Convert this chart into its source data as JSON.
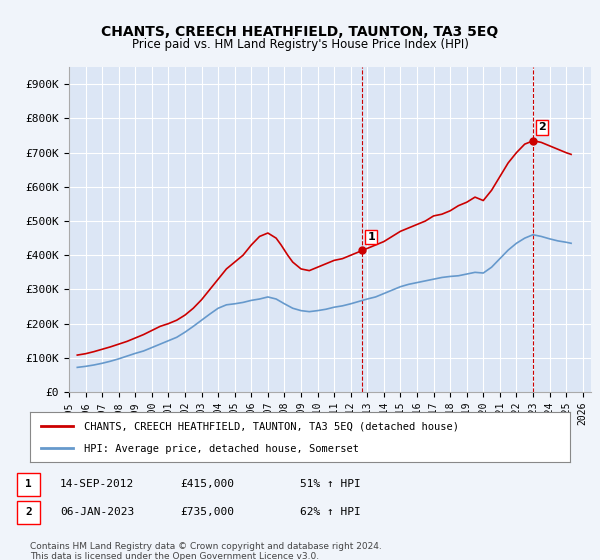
{
  "title": "CHANTS, CREECH HEATHFIELD, TAUNTON, TA3 5EQ",
  "subtitle": "Price paid vs. HM Land Registry's House Price Index (HPI)",
  "background_color": "#f0f4fa",
  "plot_bg_color": "#dce6f5",
  "grid_color": "#ffffff",
  "ylim": [
    0,
    950000
  ],
  "yticks": [
    0,
    100000,
    200000,
    300000,
    400000,
    500000,
    600000,
    700000,
    800000,
    900000
  ],
  "ytick_labels": [
    "£0",
    "£100K",
    "£200K",
    "£300K",
    "£400K",
    "£500K",
    "£600K",
    "£700K",
    "£800K",
    "£900K"
  ],
  "xlim_start": 1995.0,
  "xlim_end": 2026.5,
  "xtick_years": [
    1995,
    1996,
    1997,
    1998,
    1999,
    2000,
    2001,
    2002,
    2003,
    2004,
    2005,
    2006,
    2007,
    2008,
    2009,
    2010,
    2011,
    2012,
    2013,
    2014,
    2015,
    2016,
    2017,
    2018,
    2019,
    2020,
    2021,
    2022,
    2023,
    2024,
    2025,
    2026
  ],
  "red_line_color": "#cc0000",
  "blue_line_color": "#6699cc",
  "marker1_x": 2012.71,
  "marker1_y": 415000,
  "marker2_x": 2023.02,
  "marker2_y": 735000,
  "vline1_x": 2012.71,
  "vline2_x": 2023.02,
  "legend_label_red": "CHANTS, CREECH HEATHFIELD, TAUNTON, TA3 5EQ (detached house)",
  "legend_label_blue": "HPI: Average price, detached house, Somerset",
  "annotation1_label": "1",
  "annotation2_label": "2",
  "note1_box": "1",
  "note1_date": "14-SEP-2012",
  "note1_price": "£415,000",
  "note1_hpi": "51% ↑ HPI",
  "note2_box": "2",
  "note2_date": "06-JAN-2023",
  "note2_price": "£735,000",
  "note2_hpi": "62% ↑ HPI",
  "footer": "Contains HM Land Registry data © Crown copyright and database right 2024.\nThis data is licensed under the Open Government Licence v3.0.",
  "red_x": [
    1995.5,
    1996.0,
    1996.5,
    1997.0,
    1997.5,
    1998.0,
    1998.5,
    1999.0,
    1999.5,
    2000.0,
    2000.5,
    2001.0,
    2001.5,
    2002.0,
    2002.5,
    2003.0,
    2003.5,
    2004.0,
    2004.5,
    2005.0,
    2005.5,
    2006.0,
    2006.5,
    2007.0,
    2007.5,
    2007.8,
    2008.2,
    2008.5,
    2009.0,
    2009.5,
    2010.0,
    2010.5,
    2011.0,
    2011.5,
    2012.0,
    2012.5,
    2012.71,
    2013.0,
    2013.5,
    2014.0,
    2014.5,
    2015.0,
    2015.5,
    2016.0,
    2016.5,
    2017.0,
    2017.5,
    2018.0,
    2018.5,
    2019.0,
    2019.5,
    2020.0,
    2020.5,
    2021.0,
    2021.5,
    2022.0,
    2022.5,
    2023.02,
    2023.5,
    2024.0,
    2024.5,
    2025.0,
    2025.3
  ],
  "red_y": [
    108000,
    112000,
    118000,
    125000,
    132000,
    140000,
    148000,
    158000,
    168000,
    180000,
    192000,
    200000,
    210000,
    225000,
    245000,
    270000,
    300000,
    330000,
    360000,
    380000,
    400000,
    430000,
    455000,
    465000,
    450000,
    430000,
    400000,
    380000,
    360000,
    355000,
    365000,
    375000,
    385000,
    390000,
    400000,
    410000,
    415000,
    420000,
    430000,
    440000,
    455000,
    470000,
    480000,
    490000,
    500000,
    515000,
    520000,
    530000,
    545000,
    555000,
    570000,
    560000,
    590000,
    630000,
    670000,
    700000,
    725000,
    735000,
    730000,
    720000,
    710000,
    700000,
    695000
  ],
  "blue_x": [
    1995.5,
    1996.0,
    1996.5,
    1997.0,
    1997.5,
    1998.0,
    1998.5,
    1999.0,
    1999.5,
    2000.0,
    2000.5,
    2001.0,
    2001.5,
    2002.0,
    2002.5,
    2003.0,
    2003.5,
    2004.0,
    2004.5,
    2005.0,
    2005.5,
    2006.0,
    2006.5,
    2007.0,
    2007.5,
    2008.0,
    2008.5,
    2009.0,
    2009.5,
    2010.0,
    2010.5,
    2011.0,
    2011.5,
    2012.0,
    2012.5,
    2013.0,
    2013.5,
    2014.0,
    2014.5,
    2015.0,
    2015.5,
    2016.0,
    2016.5,
    2017.0,
    2017.5,
    2018.0,
    2018.5,
    2019.0,
    2019.5,
    2020.0,
    2020.5,
    2021.0,
    2021.5,
    2022.0,
    2022.5,
    2023.0,
    2023.5,
    2024.0,
    2024.5,
    2025.0,
    2025.3
  ],
  "blue_y": [
    72000,
    75000,
    79000,
    84000,
    90000,
    97000,
    105000,
    113000,
    120000,
    130000,
    140000,
    150000,
    160000,
    175000,
    192000,
    210000,
    228000,
    245000,
    255000,
    258000,
    262000,
    268000,
    272000,
    278000,
    272000,
    258000,
    245000,
    238000,
    235000,
    238000,
    242000,
    248000,
    252000,
    258000,
    265000,
    272000,
    278000,
    288000,
    298000,
    308000,
    315000,
    320000,
    325000,
    330000,
    335000,
    338000,
    340000,
    345000,
    350000,
    348000,
    365000,
    390000,
    415000,
    435000,
    450000,
    460000,
    455000,
    448000,
    442000,
    438000,
    435000
  ]
}
